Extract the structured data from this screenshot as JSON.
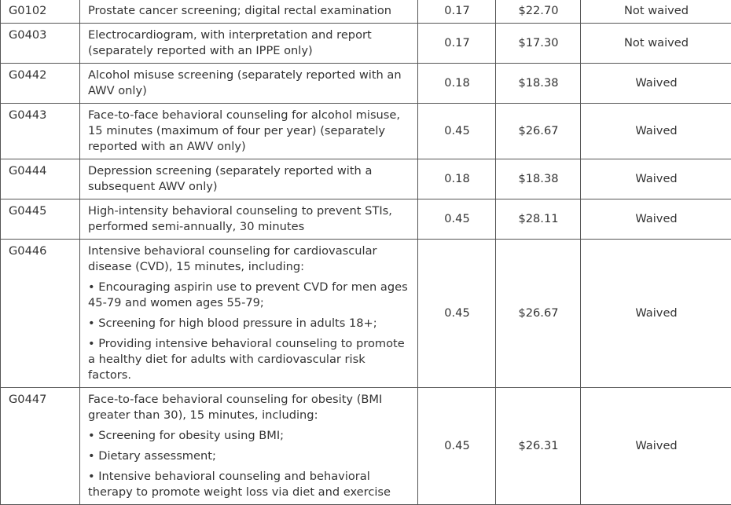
{
  "rows": [
    {
      "code": "G0102",
      "desc": [
        "Prostate cancer screening; digital rectal examination"
      ],
      "rvu": "0.17",
      "payment": "$22.70",
      "coinsurance": "Not waived"
    },
    {
      "code": "G0403",
      "desc": [
        "Electrocardiogram, with interpretation and report (separately reported with an IPPE only)"
      ],
      "rvu": "0.17",
      "payment": "$17.30",
      "coinsurance": "Not waived"
    },
    {
      "code": "G0442",
      "desc": [
        "Alcohol misuse screening (separately reported with an AWV only)"
      ],
      "rvu": "0.18",
      "payment": "$18.38",
      "coinsurance": "Waived"
    },
    {
      "code": "G0443",
      "desc": [
        "Face-to-face behavioral counseling for alcohol misuse, 15 minutes (maximum of four per year) (separately reported with an AWV only)"
      ],
      "rvu": "0.45",
      "payment": "$26.67",
      "coinsurance": "Waived"
    },
    {
      "code": "G0444",
      "desc": [
        "Depression screening (separately reported with a subsequent AWV only)"
      ],
      "rvu": "0.18",
      "payment": "$18.38",
      "coinsurance": "Waived"
    },
    {
      "code": "G0445",
      "desc": [
        "High-intensity behavioral counseling to prevent STIs, performed semi-annually, 30 minutes"
      ],
      "rvu": "0.45",
      "payment": "$28.11",
      "coinsurance": "Waived"
    },
    {
      "code": "G0446",
      "desc": [
        "Intensive behavioral counseling for cardiovascular disease (CVD), 15 minutes, including:",
        "• Encouraging aspirin use to prevent CVD for men ages 45-79 and women ages 55-79;",
        "• Screening for high blood pressure in adults 18+;",
        "• Providing intensive behavioral counseling to promote a healthy diet for adults with cardiovascular risk factors."
      ],
      "rvu": "0.45",
      "payment": "$26.67",
      "coinsurance": "Waived"
    },
    {
      "code": "G0447",
      "desc": [
        "Face-to-face behavioral counseling for obesity (BMI greater than 30), 15 minutes, including:",
        "• Screening for obesity using BMI;",
        "• Dietary assessment;",
        "• Intensive behavioral counseling and behavioral therapy to promote weight loss via diet and exercise"
      ],
      "rvu": "0.45",
      "payment": "$26.31",
      "coinsurance": "Waived"
    }
  ]
}
